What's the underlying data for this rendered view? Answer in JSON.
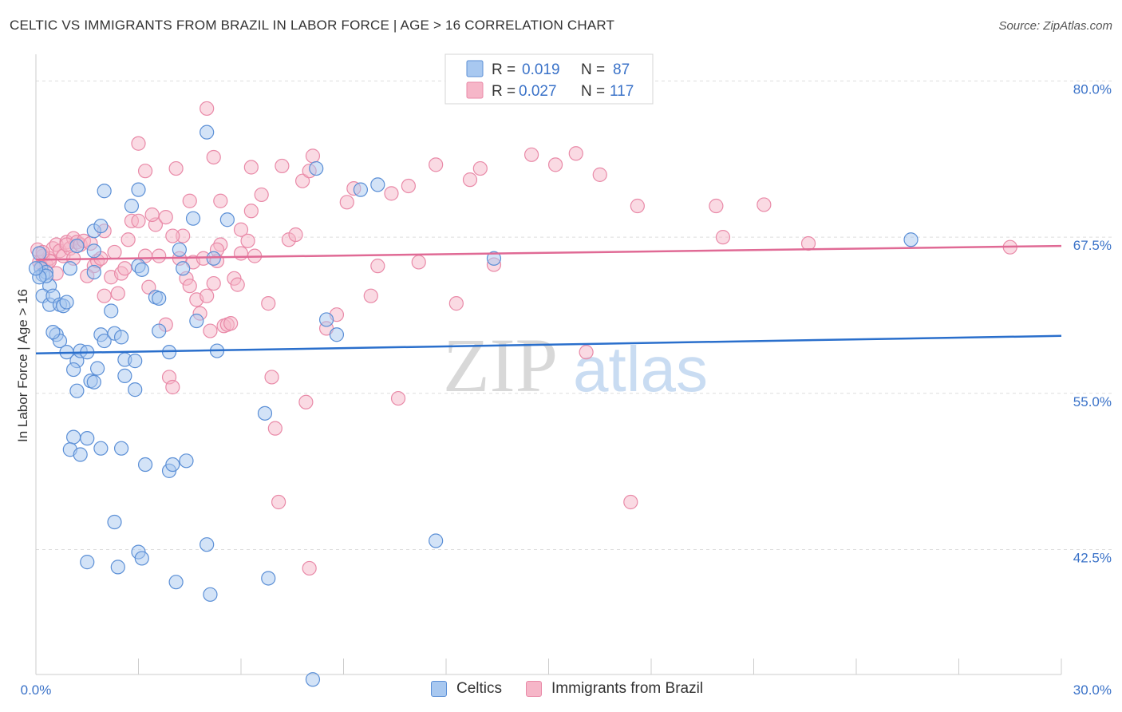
{
  "title": "CELTIC VS IMMIGRANTS FROM BRAZIL IN LABOR FORCE | AGE > 16 CORRELATION CHART",
  "source": "Source: ZipAtlas.com",
  "watermark": {
    "zip": "ZIP",
    "atlas": "atlas"
  },
  "colors": {
    "blue_fill": "#a8c8f0",
    "blue_stroke": "#5b8fd6",
    "blue_line": "#2a6fcc",
    "pink_fill": "#f6b6c8",
    "pink_stroke": "#e98aa8",
    "pink_line": "#e06a95",
    "axis_label": "#3a72c8",
    "grid": "#dddddd"
  },
  "legend": {
    "r_label": "R =",
    "n_label": "N =",
    "rows": [
      {
        "series": "Celtics",
        "r": "0.019",
        "n": "87"
      },
      {
        "series": "Immigrants from Brazil",
        "r": "0.027",
        "n": "117"
      }
    ]
  },
  "chart_data": {
    "type": "scatter",
    "title": "CELTIC VS IMMIGRANTS FROM BRAZIL IN LABOR FORCE | AGE > 16 CORRELATION CHART",
    "xlabel": "",
    "ylabel": "In Labor Force | Age > 16",
    "xlim": [
      0,
      30
    ],
    "ylim": [
      32.5,
      81.5
    ],
    "x_tick_labels": [
      "0.0%",
      "30.0%"
    ],
    "y_ticks": [
      42.5,
      55.0,
      67.5,
      80.0
    ],
    "y_tick_labels": [
      "42.5%",
      "55.0%",
      "67.5%",
      "80.0%"
    ],
    "grid": true,
    "legend_position": "top-center",
    "series": [
      {
        "name": "Celtics",
        "color": "blue",
        "trend": {
          "x": [
            0,
            30
          ],
          "y": [
            58.2,
            59.6
          ]
        },
        "points": [
          [
            0.1,
            66.2
          ],
          [
            0.15,
            65.0
          ],
          [
            0.2,
            64.5
          ],
          [
            0.3,
            64.7
          ],
          [
            0.4,
            63.6
          ],
          [
            0.2,
            62.8
          ],
          [
            0.4,
            62.1
          ],
          [
            0.5,
            62.8
          ],
          [
            0.7,
            62.1
          ],
          [
            0.8,
            62.0
          ],
          [
            0.9,
            62.3
          ],
          [
            0.6,
            59.7
          ],
          [
            0.7,
            59.2
          ],
          [
            0.5,
            59.9
          ],
          [
            0.9,
            58.3
          ],
          [
            1.2,
            57.6
          ],
          [
            1.1,
            56.9
          ],
          [
            1.3,
            58.4
          ],
          [
            1.5,
            58.3
          ],
          [
            1.9,
            59.7
          ],
          [
            2.0,
            59.2
          ],
          [
            2.3,
            59.8
          ],
          [
            2.5,
            59.5
          ],
          [
            2.6,
            57.7
          ],
          [
            2.9,
            57.6
          ],
          [
            1.6,
            56.0
          ],
          [
            1.8,
            57.0
          ],
          [
            2.6,
            56.4
          ],
          [
            2.9,
            55.3
          ],
          [
            1.2,
            55.2
          ],
          [
            1.7,
            55.9
          ],
          [
            1.1,
            51.5
          ],
          [
            1.5,
            51.4
          ],
          [
            1.0,
            50.5
          ],
          [
            1.3,
            50.1
          ],
          [
            1.9,
            50.6
          ],
          [
            2.5,
            50.6
          ],
          [
            3.2,
            49.3
          ],
          [
            3.9,
            48.8
          ],
          [
            4.0,
            49.3
          ],
          [
            4.4,
            49.6
          ],
          [
            2.3,
            44.7
          ],
          [
            3.0,
            42.3
          ],
          [
            3.1,
            41.8
          ],
          [
            1.5,
            41.5
          ],
          [
            2.4,
            41.1
          ],
          [
            5.0,
            42.9
          ],
          [
            4.1,
            39.9
          ],
          [
            5.1,
            38.9
          ],
          [
            6.8,
            40.2
          ],
          [
            8.1,
            32.1
          ],
          [
            11.7,
            43.2
          ],
          [
            6.7,
            53.4
          ],
          [
            3.5,
            62.7
          ],
          [
            3.6,
            62.6
          ],
          [
            4.3,
            65.0
          ],
          [
            4.2,
            66.5
          ],
          [
            5.2,
            65.8
          ],
          [
            3.0,
            65.2
          ],
          [
            3.1,
            64.9
          ],
          [
            1.7,
            64.7
          ],
          [
            1.7,
            68.0
          ],
          [
            1.7,
            66.4
          ],
          [
            1.9,
            68.4
          ],
          [
            1.2,
            66.8
          ],
          [
            1.0,
            65.0
          ],
          [
            0.3,
            64.4
          ],
          [
            2.2,
            61.6
          ],
          [
            3.6,
            60.0
          ],
          [
            3.9,
            58.3
          ],
          [
            4.7,
            60.8
          ],
          [
            5.3,
            58.4
          ],
          [
            8.5,
            60.9
          ],
          [
            8.8,
            59.7
          ],
          [
            4.6,
            69.0
          ],
          [
            5.6,
            68.9
          ],
          [
            5.0,
            75.9
          ],
          [
            3.0,
            71.3
          ],
          [
            2.8,
            70.0
          ],
          [
            2.0,
            71.2
          ],
          [
            8.2,
            73.0
          ],
          [
            9.5,
            71.3
          ],
          [
            10.0,
            71.7
          ],
          [
            13.4,
            65.8
          ],
          [
            25.6,
            67.3
          ],
          [
            0.1,
            64.3
          ],
          [
            0.0,
            65.0
          ]
        ]
      },
      {
        "name": "Immigrants from Brazil",
        "color": "pink",
        "trend": {
          "x": [
            0,
            30
          ],
          "y": [
            65.7,
            66.8
          ]
        },
        "points": [
          [
            0.05,
            66.5
          ],
          [
            0.1,
            65.5
          ],
          [
            0.2,
            66.0
          ],
          [
            0.3,
            65.3
          ],
          [
            0.4,
            65.8
          ],
          [
            0.5,
            66.6
          ],
          [
            0.6,
            66.9
          ],
          [
            0.7,
            66.4
          ],
          [
            0.8,
            66.0
          ],
          [
            0.9,
            67.1
          ],
          [
            1.0,
            66.6
          ],
          [
            1.1,
            67.4
          ],
          [
            1.2,
            67.1
          ],
          [
            1.3,
            66.9
          ],
          [
            1.4,
            67.2
          ],
          [
            1.6,
            67.0
          ],
          [
            1.7,
            65.2
          ],
          [
            1.8,
            65.6
          ],
          [
            1.9,
            65.8
          ],
          [
            2.0,
            62.8
          ],
          [
            2.2,
            64.3
          ],
          [
            2.4,
            63.0
          ],
          [
            2.5,
            64.6
          ],
          [
            2.6,
            65.0
          ],
          [
            2.7,
            67.3
          ],
          [
            2.8,
            68.8
          ],
          [
            3.0,
            68.8
          ],
          [
            3.2,
            66.0
          ],
          [
            3.3,
            63.5
          ],
          [
            3.5,
            68.5
          ],
          [
            3.6,
            66.0
          ],
          [
            3.8,
            60.5
          ],
          [
            3.9,
            56.3
          ],
          [
            4.0,
            55.5
          ],
          [
            4.2,
            65.8
          ],
          [
            4.3,
            67.6
          ],
          [
            4.4,
            64.2
          ],
          [
            4.5,
            63.6
          ],
          [
            4.6,
            65.5
          ],
          [
            4.7,
            62.5
          ],
          [
            4.8,
            61.4
          ],
          [
            4.9,
            65.8
          ],
          [
            5.0,
            62.8
          ],
          [
            5.1,
            60.0
          ],
          [
            5.2,
            63.8
          ],
          [
            5.3,
            65.6
          ],
          [
            5.4,
            66.9
          ],
          [
            5.5,
            60.4
          ],
          [
            5.6,
            60.5
          ],
          [
            5.7,
            60.6
          ],
          [
            5.8,
            64.2
          ],
          [
            5.9,
            63.7
          ],
          [
            6.0,
            68.1
          ],
          [
            6.2,
            67.2
          ],
          [
            6.4,
            66.0
          ],
          [
            6.6,
            70.9
          ],
          [
            6.8,
            62.2
          ],
          [
            6.9,
            56.3
          ],
          [
            7.0,
            52.2
          ],
          [
            7.1,
            46.3
          ],
          [
            7.2,
            73.2
          ],
          [
            7.4,
            67.3
          ],
          [
            7.6,
            67.7
          ],
          [
            7.8,
            72.0
          ],
          [
            7.9,
            54.3
          ],
          [
            8.0,
            72.8
          ],
          [
            8.1,
            74.0
          ],
          [
            8.5,
            60.2
          ],
          [
            8.8,
            61.3
          ],
          [
            9.1,
            70.3
          ],
          [
            9.3,
            71.4
          ],
          [
            9.8,
            62.8
          ],
          [
            10.0,
            65.2
          ],
          [
            10.4,
            71.0
          ],
          [
            10.6,
            54.6
          ],
          [
            10.9,
            71.6
          ],
          [
            11.2,
            65.5
          ],
          [
            11.7,
            73.3
          ],
          [
            12.3,
            62.2
          ],
          [
            12.7,
            72.1
          ],
          [
            13.0,
            73.0
          ],
          [
            13.4,
            65.3
          ],
          [
            14.5,
            74.1
          ],
          [
            15.2,
            73.3
          ],
          [
            15.8,
            74.2
          ],
          [
            16.1,
            58.3
          ],
          [
            16.5,
            72.5
          ],
          [
            17.4,
            46.3
          ],
          [
            17.6,
            70.0
          ],
          [
            19.9,
            70.0
          ],
          [
            20.1,
            67.5
          ],
          [
            21.3,
            70.1
          ],
          [
            22.6,
            67.0
          ],
          [
            3.0,
            75.0
          ],
          [
            3.2,
            72.8
          ],
          [
            4.1,
            73.0
          ],
          [
            4.5,
            70.4
          ],
          [
            5.0,
            77.8
          ],
          [
            5.2,
            73.9
          ],
          [
            5.4,
            70.4
          ],
          [
            6.3,
            73.1
          ],
          [
            4.0,
            67.6
          ],
          [
            3.4,
            69.3
          ],
          [
            3.8,
            69.1
          ],
          [
            5.3,
            66.5
          ],
          [
            6.0,
            66.2
          ],
          [
            8.0,
            41.0
          ],
          [
            2.0,
            68.0
          ],
          [
            2.3,
            66.3
          ],
          [
            1.5,
            64.4
          ],
          [
            0.6,
            64.6
          ],
          [
            0.9,
            66.9
          ],
          [
            1.1,
            65.8
          ],
          [
            0.4,
            65.6
          ],
          [
            0.2,
            66.3
          ],
          [
            0.15,
            65.1
          ],
          [
            28.5,
            66.7
          ],
          [
            6.3,
            69.6
          ]
        ]
      }
    ]
  }
}
